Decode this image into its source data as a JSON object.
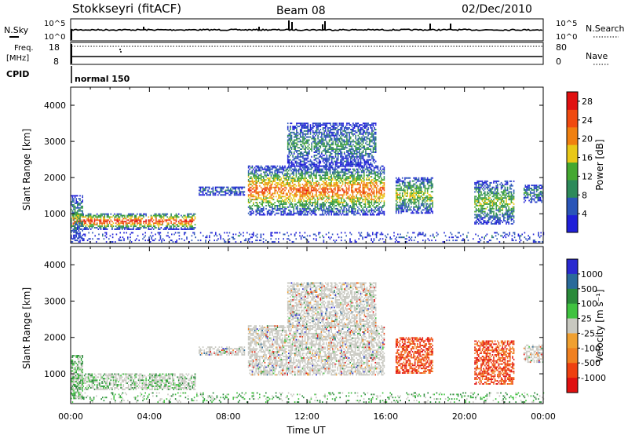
{
  "header": {
    "title": "Stokkseyri (fitACF)",
    "beam": "Beam 08",
    "date": "02/Dec/2010"
  },
  "params": {
    "nsky_label": "N.Sky",
    "nsky_ticks": [
      "10^5",
      "10^0"
    ],
    "nsearch_label": "N.Search",
    "nsearch_ticks": [
      "10^5",
      "10^0"
    ],
    "freq_label": "Freq.",
    "freq_unit": "[MHz]",
    "freq_ticks": [
      "18",
      "8"
    ],
    "nave_label": "Nave",
    "nave_ticks": [
      "80",
      "0"
    ],
    "cpid_label": "CPID",
    "cpid_value": "normal 150"
  },
  "colors": {
    "power": [
      "#1f1fd8",
      "#2a55b8",
      "#2d8a5a",
      "#44a830",
      "#e8c818",
      "#f08010",
      "#f04a10",
      "#e01010"
    ],
    "velocity": [
      "#2a2ad0",
      "#2a6a9a",
      "#2a8a3a",
      "#3fc23f",
      "#c8c8c0",
      "#f0a030",
      "#f08020",
      "#ee4010",
      "#e01010"
    ]
  },
  "chart_data": [
    {
      "type": "heatmap",
      "name": "power",
      "ylabel": "Slant Range [km]",
      "xlabel": "",
      "x_ticks": [
        "00:00",
        "04:00",
        "08:00",
        "12:00",
        "16:00",
        "20:00",
        "00:00"
      ],
      "xlim_hours": [
        0,
        24
      ],
      "y_ticks": [
        1000,
        2000,
        3000,
        4000
      ],
      "ylim_km": [
        180,
        4500
      ],
      "colorbar_label": "Power [dB]",
      "colorbar_ticks": [
        4,
        8,
        12,
        16,
        20,
        24,
        28
      ],
      "colorbar_range": [
        0,
        30
      ]
    },
    {
      "type": "heatmap",
      "name": "velocity",
      "ylabel": "Slant Range [km]",
      "xlabel": "Time UT",
      "x_ticks": [
        "00:00",
        "04:00",
        "08:00",
        "12:00",
        "16:00",
        "20:00",
        "00:00"
      ],
      "xlim_hours": [
        0,
        24
      ],
      "y_ticks": [
        1000,
        2000,
        3000,
        4000
      ],
      "ylim_km": [
        180,
        4500
      ],
      "colorbar_label": "Velocity [m s⁻¹]",
      "colorbar_ticks": [
        "1000",
        "500",
        "100",
        "25",
        "-25",
        "-100",
        "-500",
        "-1000"
      ]
    }
  ]
}
